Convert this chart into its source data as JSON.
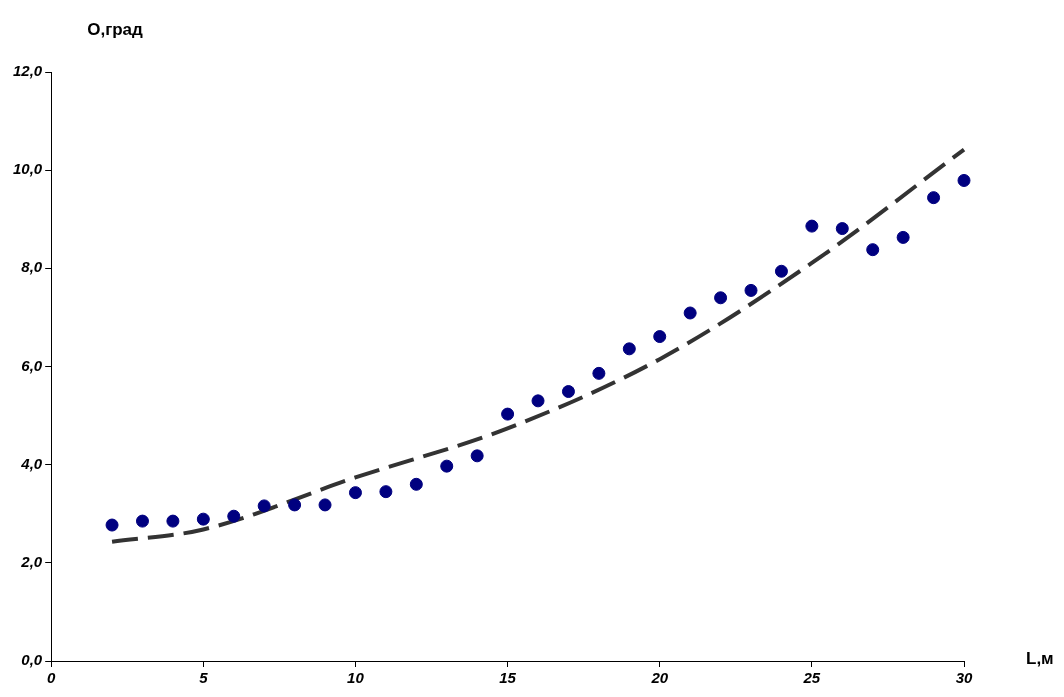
{
  "chart_data": {
    "type": "scatter",
    "xlabel": "L,м",
    "ylabel": "О,град",
    "xlim": [
      0,
      30
    ],
    "xticks": [
      0,
      5,
      10,
      15,
      20,
      25,
      30
    ],
    "ylim": [
      0,
      12
    ],
    "yticks": [
      {
        "value": 0,
        "label": "0,0"
      },
      {
        "value": 2,
        "label": "2,0"
      },
      {
        "value": 4,
        "label": "4,0"
      },
      {
        "value": 6,
        "label": "6,0"
      },
      {
        "value": 8,
        "label": "8,0"
      },
      {
        "value": 10,
        "label": "10,0"
      },
      {
        "value": 12,
        "label": "12,0"
      }
    ],
    "grid": false,
    "legend": false,
    "series": [
      {
        "color": "#000080",
        "marker": "circle",
        "x": [
          2,
          3,
          4,
          5,
          6,
          7,
          8,
          9,
          10,
          11,
          12,
          13,
          14,
          15,
          16,
          17,
          18,
          19,
          20,
          21,
          22,
          23,
          24,
          25,
          26,
          27,
          28,
          29,
          30
        ],
        "values": [
          2.77,
          2.85,
          2.85,
          2.89,
          2.95,
          3.16,
          3.18,
          3.18,
          3.43,
          3.45,
          3.6,
          3.97,
          4.18,
          5.03,
          5.3,
          5.49,
          5.86,
          6.36,
          6.61,
          7.09,
          7.4,
          7.55,
          7.94,
          8.86,
          8.81,
          8.38,
          8.63,
          9.44,
          9.79
        ]
      },
      {
        "type": "line",
        "color": "#333333",
        "marker": "none",
        "line_style": "dashed",
        "x": [
          2,
          5,
          10,
          15,
          20,
          25,
          30
        ],
        "values": [
          2.43,
          2.68,
          3.74,
          4.74,
          6.15,
          8.11,
          10.42
        ]
      }
    ]
  }
}
